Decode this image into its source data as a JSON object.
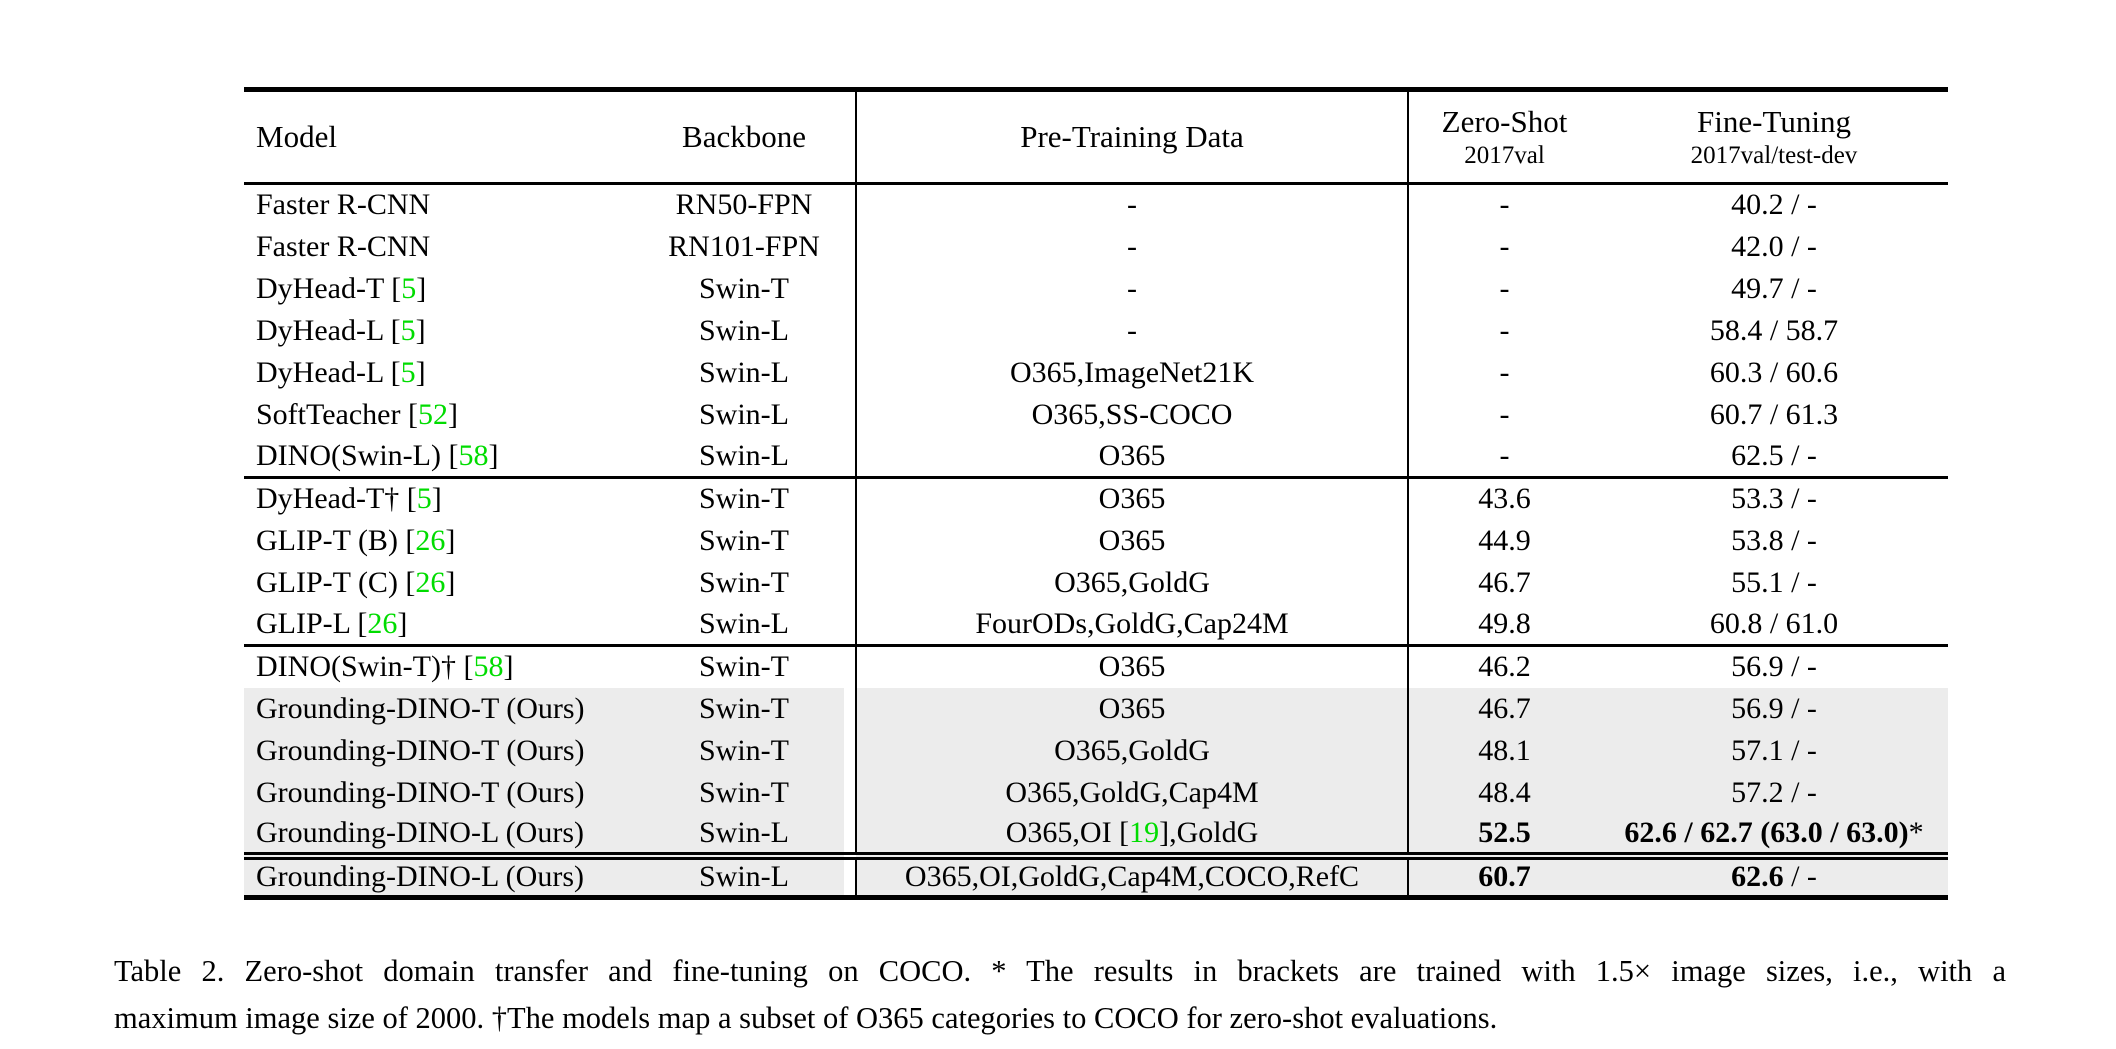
{
  "colors": {
    "citation_green": "#00DC00",
    "row_highlight_gray": "#ececec",
    "text": "#000000",
    "background": "#ffffff"
  },
  "table": {
    "header": {
      "model": "Model",
      "backbone": "Backbone",
      "pretraining": "Pre-Training Data",
      "zeroshot_title": "Zero-Shot",
      "zeroshot_sub": "2017val",
      "finetune_title": "Fine-Tuning",
      "finetune_sub": "2017val/test-dev"
    },
    "groups": [
      {
        "rows": [
          {
            "model": "Faster R-CNN",
            "backbone": "RN50-FPN",
            "pretrain": "-",
            "zs_bold": "",
            "zs": "-",
            "ft_bold": "",
            "ft": "40.2 / -"
          },
          {
            "model": "Faster R-CNN",
            "backbone": "RN101-FPN",
            "pretrain": "-",
            "zs_bold": "",
            "zs": "-",
            "ft_bold": "",
            "ft": "42.0 / -"
          },
          {
            "model": "DyHead-T [5]",
            "backbone": "Swin-T",
            "pretrain": "-",
            "zs_bold": "",
            "zs": "-",
            "ft_bold": "",
            "ft": "49.7 / -"
          },
          {
            "model": "DyHead-L [5]",
            "backbone": "Swin-L",
            "pretrain": "-",
            "zs_bold": "",
            "zs": "-",
            "ft_bold": "",
            "ft": "58.4 / 58.7"
          },
          {
            "model": "DyHead-L [5]",
            "backbone": "Swin-L",
            "pretrain": "O365,ImageNet21K",
            "zs_bold": "",
            "zs": "-",
            "ft_bold": "",
            "ft": "60.3 / 60.6"
          },
          {
            "model": "SoftTeacher [52]",
            "backbone": "Swin-L",
            "pretrain": "O365,SS-COCO",
            "zs_bold": "",
            "zs": "-",
            "ft_bold": "",
            "ft": "60.7 / 61.3"
          },
          {
            "model": "DINO(Swin-L) [58]",
            "backbone": "Swin-L",
            "pretrain": "O365",
            "zs_bold": "",
            "zs": "-",
            "ft_bold": "",
            "ft": "62.5 / -"
          }
        ]
      },
      {
        "rows": [
          {
            "model": "DyHead-T† [5]",
            "backbone": "Swin-T",
            "pretrain": "O365",
            "zs_bold": "",
            "zs": "43.6",
            "ft_bold": "",
            "ft": "53.3 / -"
          },
          {
            "model": "GLIP-T (B) [26]",
            "backbone": "Swin-T",
            "pretrain": "O365",
            "zs_bold": "",
            "zs": "44.9",
            "ft_bold": "",
            "ft": "53.8 / -"
          },
          {
            "model": "GLIP-T (C) [26]",
            "backbone": "Swin-T",
            "pretrain": "O365,GoldG",
            "zs_bold": "",
            "zs": "46.7",
            "ft_bold": "",
            "ft": "55.1 / -"
          },
          {
            "model": "GLIP-L [26]",
            "backbone": "Swin-L",
            "pretrain": "FourODs,GoldG,Cap24M",
            "zs_bold": "",
            "zs": "49.8",
            "ft_bold": "",
            "ft": "60.8 / 61.0"
          }
        ]
      },
      {
        "rows": [
          {
            "model": "DINO(Swin-T)† [58]",
            "backbone": "Swin-T",
            "pretrain": "O365",
            "zs_bold": "",
            "zs": "46.2",
            "ft_bold": "",
            "ft": "56.9 / -"
          },
          {
            "model": "Grounding-DINO-T (Ours)",
            "backbone": "Swin-T",
            "pretrain": "O365",
            "zs_bold": "",
            "zs": "46.7",
            "ft_bold": "",
            "ft": "56.9 / -"
          },
          {
            "model": "Grounding-DINO-T (Ours)",
            "backbone": "Swin-T",
            "pretrain": "O365,GoldG",
            "zs_bold": "",
            "zs": "48.1",
            "ft_bold": "",
            "ft": "57.1 / -"
          },
          {
            "model": "Grounding-DINO-T (Ours)",
            "backbone": "Swin-T",
            "pretrain": "O365,GoldG,Cap4M",
            "zs_bold": "",
            "zs": "48.4",
            "ft_bold": "",
            "ft": "57.2 / -"
          },
          {
            "model": "Grounding-DINO-L (Ours)",
            "backbone": "Swin-L",
            "pretrain": "O365,OI [19],GoldG",
            "zs_bold": "52.5",
            "zs": "",
            "ft_bold": "62.6 / 62.7 (63.0 / 63.0)",
            "ft": "*"
          }
        ]
      },
      {
        "rows": [
          {
            "model": "Grounding-DINO-L (Ours)",
            "backbone": "Swin-L",
            "pretrain": "O365,OI,GoldG,Cap4M,COCO,RefC",
            "zs_bold": "60.7",
            "zs": "",
            "ft_bold": "62.6",
            "ft": " / -"
          }
        ]
      }
    ]
  },
  "caption": {
    "line1": "Table 2.  Zero-shot domain transfer and fine-tuning on COCO. * The results in brackets are trained with 1.5× image sizes, i.e., with a",
    "line2": "maximum image size of 2000. †The models map a subset of O365 categories to COCO for zero-shot evaluations."
  }
}
